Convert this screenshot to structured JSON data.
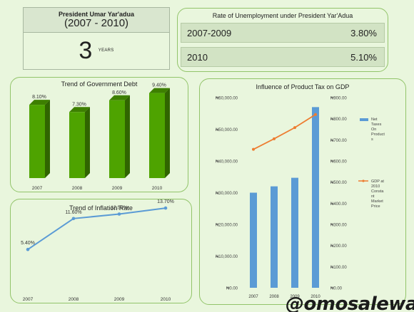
{
  "president": {
    "name": "President Umar Yar'adua",
    "term": "(2007 - 2010)",
    "years_value": "3",
    "years_unit": "YEARS"
  },
  "unemployment": {
    "title": "Rate of Unemployment under President Yar'Adua",
    "rows": [
      {
        "period": "2007-2009",
        "rate": "3.80%"
      },
      {
        "period": "2010",
        "rate": "5.10%"
      }
    ]
  },
  "watermark": "@omosalewa",
  "chart_data": [
    {
      "type": "bar",
      "title": "Trend of Government Debt",
      "categories": [
        "2007",
        "2008",
        "2009",
        "2010"
      ],
      "values": [
        8.1,
        7.3,
        8.6,
        9.4
      ],
      "data_labels": [
        "8.10%",
        "7.30%",
        "8.60%",
        "9.40%"
      ],
      "ylim": [
        0,
        10
      ],
      "color": "#4ea300"
    },
    {
      "type": "line",
      "title": "Trend of Inflation Rate",
      "categories": [
        "2007",
        "2008",
        "2009",
        "2010"
      ],
      "values": [
        5.4,
        11.6,
        12.5,
        13.7
      ],
      "data_labels": [
        "5.40%",
        "11.60%",
        "12.50%",
        "13.70%"
      ],
      "ylim": [
        0,
        15
      ],
      "color": "#5b9bd5"
    },
    {
      "type": "bar",
      "title": "Influence of Product Tax on GDP",
      "categories": [
        "2007",
        "2008",
        "2009",
        "2010"
      ],
      "left_axis": {
        "ylim": [
          0,
          60000
        ],
        "ticks": [
          "₦0.00",
          "₦10,000.00",
          "₦20,000.00",
          "₦30,000.00",
          "₦40,000.00",
          "₦50,000.00",
          "₦60,000.00"
        ]
      },
      "right_axis": {
        "ylim": [
          0,
          900
        ],
        "ticks": [
          "₦0.00",
          "₦100.00",
          "₦200.00",
          "₦300.00",
          "₦400.00",
          "₦500.00",
          "₦600.00",
          "₦700.00",
          "₦800.00",
          "₦900.00"
        ]
      },
      "series": [
        {
          "name": "Net Taxes On Products",
          "name_lines": [
            "Net",
            "Taxes",
            "On",
            "Product",
            "s"
          ],
          "type": "bar",
          "axis": "left",
          "color": "#5b9bd5",
          "values": [
            30000,
            32000,
            34700,
            57000
          ]
        },
        {
          "name": "GDP at 2010 Constant Market Price",
          "name_lines": [
            "GDP at",
            "2010",
            "Consta",
            "nt",
            "Market",
            "Price"
          ],
          "type": "line",
          "axis": "right",
          "color": "#ed7d31",
          "values": [
            655,
            705,
            758,
            820
          ]
        }
      ]
    }
  ]
}
